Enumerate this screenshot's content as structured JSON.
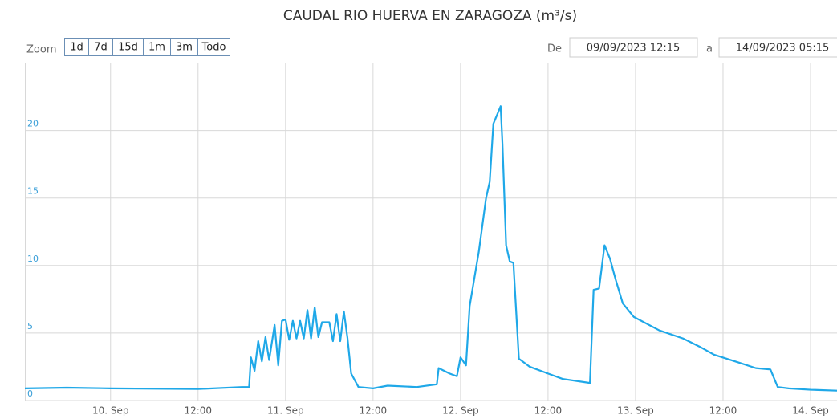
{
  "chart_data": {
    "type": "line",
    "title": "CAUDAL RIO HUERVA EN ZARAGOZA (m³/s)",
    "zoom_label": "Zoom",
    "zoom_buttons": [
      "1d",
      "7d",
      "15d",
      "1m",
      "3m",
      "Todo"
    ],
    "range_from_label": "De",
    "range_from": "09/09/2023 12:15",
    "range_to_label": "a",
    "range_to": "14/09/2023 05:15",
    "xlim": [
      "2023-09-09T12:15",
      "2023-09-14T05:15"
    ],
    "xticks": [
      {
        "value": "2023-09-10T00:00",
        "label": "10. Sep"
      },
      {
        "value": "2023-09-10T12:00",
        "label": "12:00"
      },
      {
        "value": "2023-09-11T00:00",
        "label": "11. Sep"
      },
      {
        "value": "2023-09-11T12:00",
        "label": "12:00"
      },
      {
        "value": "2023-09-12T00:00",
        "label": "12. Sep"
      },
      {
        "value": "2023-09-12T12:00",
        "label": "12:00"
      },
      {
        "value": "2023-09-13T00:00",
        "label": "13. Sep"
      },
      {
        "value": "2023-09-13T12:00",
        "label": "12:00"
      },
      {
        "value": "2023-09-14T00:00",
        "label": "14. Sep"
      }
    ],
    "ylim": [
      0,
      25
    ],
    "yticks": [
      0,
      5,
      10,
      15,
      20
    ],
    "grid": true,
    "x": [
      "2023-09-09T12:15",
      "2023-09-09T18:00",
      "2023-09-10T00:00",
      "2023-09-10T12:00",
      "2023-09-10T18:00",
      "2023-09-10T19:00",
      "2023-09-10T19:15",
      "2023-09-10T19:45",
      "2023-09-10T20:15",
      "2023-09-10T20:45",
      "2023-09-10T21:15",
      "2023-09-10T21:45",
      "2023-09-10T22:30",
      "2023-09-10T23:00",
      "2023-09-10T23:30",
      "2023-09-11T00:00",
      "2023-09-11T00:30",
      "2023-09-11T01:00",
      "2023-09-11T01:30",
      "2023-09-11T02:00",
      "2023-09-11T02:30",
      "2023-09-11T03:00",
      "2023-09-11T03:30",
      "2023-09-11T04:00",
      "2023-09-11T04:30",
      "2023-09-11T05:00",
      "2023-09-11T06:00",
      "2023-09-11T06:30",
      "2023-09-11T07:00",
      "2023-09-11T07:30",
      "2023-09-11T08:00",
      "2023-09-11T08:30",
      "2023-09-11T09:00",
      "2023-09-11T10:00",
      "2023-09-11T12:00",
      "2023-09-11T14:00",
      "2023-09-11T18:00",
      "2023-09-11T20:45",
      "2023-09-11T21:00",
      "2023-09-11T22:30",
      "2023-09-11T23:30",
      "2023-09-12T00:00",
      "2023-09-12T00:45",
      "2023-09-12T01:15",
      "2023-09-12T02:30",
      "2023-09-12T03:30",
      "2023-09-12T04:00",
      "2023-09-12T04:30",
      "2023-09-12T05:30",
      "2023-09-12T05:45",
      "2023-09-12T06:15",
      "2023-09-12T06:45",
      "2023-09-12T07:15",
      "2023-09-12T08:00",
      "2023-09-12T09:30",
      "2023-09-12T12:00",
      "2023-09-12T14:00",
      "2023-09-12T17:45",
      "2023-09-12T18:15",
      "2023-09-12T19:00",
      "2023-09-12T19:45",
      "2023-09-12T20:30",
      "2023-09-12T21:15",
      "2023-09-12T22:15",
      "2023-09-12T23:45",
      "2023-09-13T03:15",
      "2023-09-13T06:30",
      "2023-09-13T08:45",
      "2023-09-13T10:45",
      "2023-09-13T14:15",
      "2023-09-13T16:30",
      "2023-09-13T18:30",
      "2023-09-13T19:30",
      "2023-09-13T21:00",
      "2023-09-14T00:00",
      "2023-09-14T05:15"
    ],
    "series": [
      {
        "name": "Caudal",
        "color": "#1fa8e8",
        "values": [
          0.9,
          0.95,
          0.9,
          0.85,
          1.0,
          1.0,
          3.2,
          2.2,
          4.4,
          2.9,
          4.7,
          3.0,
          5.6,
          2.6,
          5.9,
          6.0,
          4.5,
          5.9,
          4.6,
          5.9,
          4.6,
          6.7,
          4.6,
          6.9,
          4.7,
          5.8,
          5.8,
          4.4,
          6.4,
          4.4,
          6.6,
          4.6,
          2.0,
          1.0,
          0.9,
          1.1,
          1.0,
          1.2,
          2.4,
          2.0,
          1.8,
          3.2,
          2.6,
          7.0,
          11.0,
          15.0,
          16.2,
          20.5,
          21.8,
          19.0,
          11.5,
          10.3,
          10.2,
          3.1,
          2.5,
          2.0,
          1.6,
          1.3,
          8.2,
          8.3,
          11.5,
          10.5,
          9.0,
          7.2,
          6.2,
          5.2,
          4.6,
          4.0,
          3.4,
          2.8,
          2.4,
          2.3,
          1.0,
          0.9,
          0.8,
          0.7
        ]
      }
    ]
  }
}
